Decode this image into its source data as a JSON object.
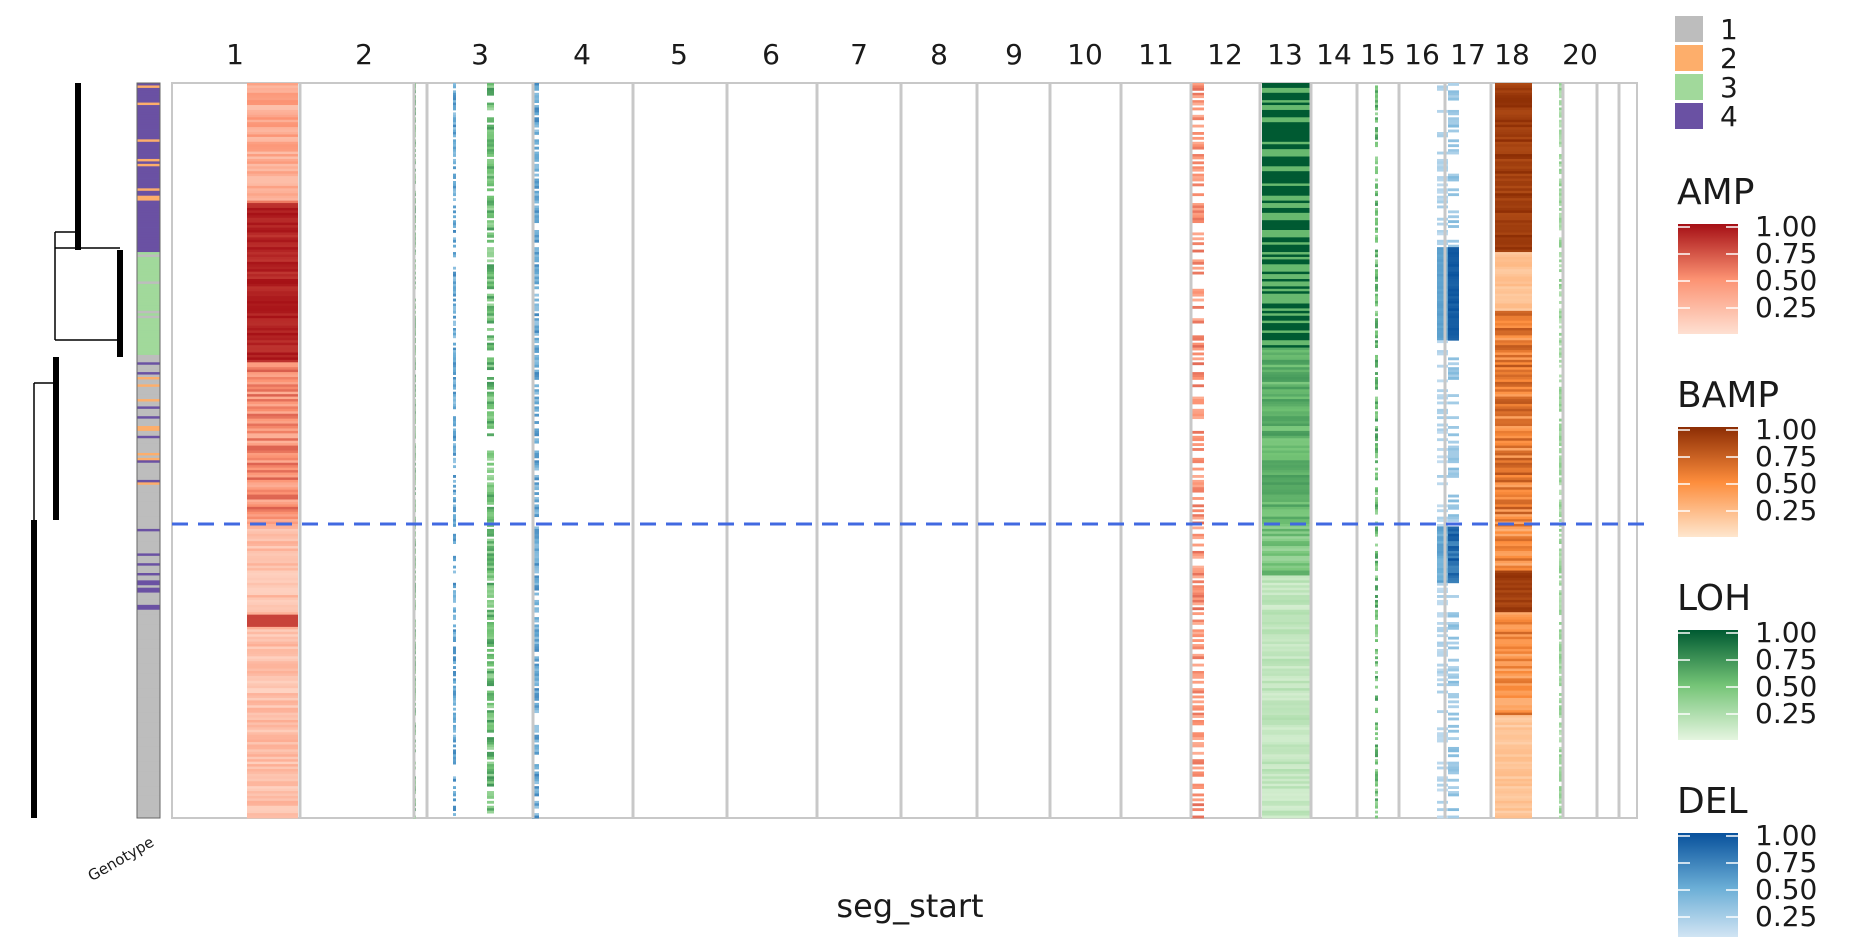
{
  "chart_data": {
    "type": "heatmap",
    "title": "",
    "xlabel": "seg_start",
    "ylabel": "",
    "chromosomes": [
      "1",
      "2",
      "3",
      "4",
      "5",
      "6",
      "7",
      "8",
      "9",
      "10",
      "11",
      "12",
      "13",
      "14",
      "15",
      "16",
      "17",
      "18",
      "20"
    ],
    "annotation_label": "Genotype",
    "genotype_legend": {
      "entries": [
        {
          "label": "1",
          "color": "#bdbdbd"
        },
        {
          "label": "2",
          "color": "#fdae6b"
        },
        {
          "label": "3",
          "color": "#a1d99b"
        },
        {
          "label": "4",
          "color": "#6a51a3"
        }
      ]
    },
    "colorbars": [
      {
        "title": "AMP",
        "ticks": [
          "1.00",
          "0.75",
          "0.50",
          "0.25"
        ],
        "low": "#fee0d2",
        "mid": "#fc9272",
        "high": "#a50f15"
      },
      {
        "title": "BAMP",
        "ticks": [
          "1.00",
          "0.75",
          "0.50",
          "0.25"
        ],
        "low": "#fee6ce",
        "mid": "#fd8d3c",
        "high": "#8c2d04"
      },
      {
        "title": "LOH",
        "ticks": [
          "1.00",
          "0.75",
          "0.50",
          "0.25"
        ],
        "low": "#e5f5e0",
        "mid": "#74c476",
        "high": "#005a32"
      },
      {
        "title": "DEL",
        "ticks": [
          "1.00",
          "0.75",
          "0.50",
          "0.25"
        ],
        "low": "#deebf7",
        "mid": "#6baed6",
        "high": "#08519c"
      }
    ],
    "events": [
      {
        "chrom": "1",
        "type": "AMP",
        "level": 0.9
      },
      {
        "chrom": "2",
        "type": "LOH",
        "level": 0.6
      },
      {
        "chrom": "3",
        "type": "DEL",
        "level": 0.5
      },
      {
        "chrom": "3",
        "type": "LOH",
        "level": 0.6
      },
      {
        "chrom": "4",
        "type": "DEL",
        "level": 0.5
      },
      {
        "chrom": "12",
        "type": "AMP",
        "level": 0.6
      },
      {
        "chrom": "13",
        "type": "LOH",
        "level": 1.0
      },
      {
        "chrom": "15",
        "type": "LOH",
        "level": 0.6
      },
      {
        "chrom": "16",
        "type": "DEL",
        "level": 0.3
      },
      {
        "chrom": "17",
        "type": "DEL",
        "level": 0.9
      },
      {
        "chrom": "18",
        "type": "BAMP",
        "level": 1.0
      },
      {
        "chrom": "20",
        "type": "LOH",
        "level": 0.3
      }
    ],
    "cut_line": {
      "color": "#4169e1",
      "style": "dashed"
    },
    "grid": false,
    "legend_position": "right"
  }
}
